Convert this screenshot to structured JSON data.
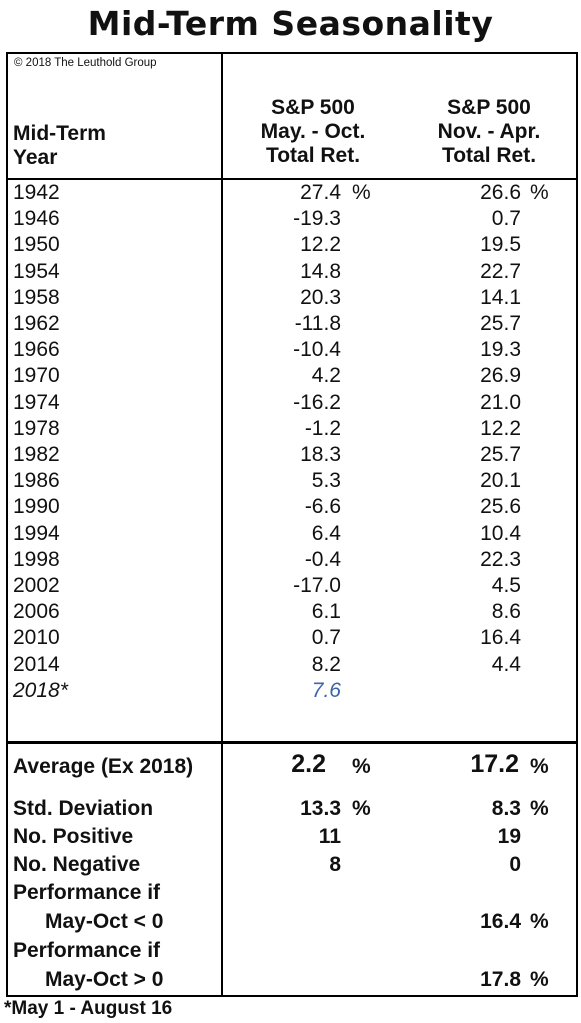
{
  "title": "Mid-Term Seasonality",
  "copyright": "© 2018 The Leuthold Group",
  "headers": {
    "year": [
      "Mid-Term",
      "Year"
    ],
    "col1": [
      "S&P 500",
      "May. - Oct.",
      "Total Ret."
    ],
    "col2": [
      "S&P 500",
      "Nov. - Apr.",
      "Total Ret."
    ]
  },
  "rows": [
    {
      "year": "1942",
      "may_oct": "27.4",
      "nov_apr": "26.6"
    },
    {
      "year": "1946",
      "may_oct": "-19.3",
      "nov_apr": "0.7"
    },
    {
      "year": "1950",
      "may_oct": "12.2",
      "nov_apr": "19.5"
    },
    {
      "year": "1954",
      "may_oct": "14.8",
      "nov_apr": "22.7"
    },
    {
      "year": "1958",
      "may_oct": "20.3",
      "nov_apr": "14.1"
    },
    {
      "year": "1962",
      "may_oct": "-11.8",
      "nov_apr": "25.7"
    },
    {
      "year": "1966",
      "may_oct": "-10.4",
      "nov_apr": "19.3"
    },
    {
      "year": "1970",
      "may_oct": "4.2",
      "nov_apr": "26.9"
    },
    {
      "year": "1974",
      "may_oct": "-16.2",
      "nov_apr": "21.0"
    },
    {
      "year": "1978",
      "may_oct": "-1.2",
      "nov_apr": "12.2"
    },
    {
      "year": "1982",
      "may_oct": "18.3",
      "nov_apr": "25.7"
    },
    {
      "year": "1986",
      "may_oct": "5.3",
      "nov_apr": "20.1"
    },
    {
      "year": "1990",
      "may_oct": "-6.6",
      "nov_apr": "25.6"
    },
    {
      "year": "1994",
      "may_oct": "6.4",
      "nov_apr": "10.4"
    },
    {
      "year": "1998",
      "may_oct": "-0.4",
      "nov_apr": "22.3"
    },
    {
      "year": "2002",
      "may_oct": "-17.0",
      "nov_apr": "4.5"
    },
    {
      "year": "2006",
      "may_oct": "6.1",
      "nov_apr": "8.6"
    },
    {
      "year": "2010",
      "may_oct": "0.7",
      "nov_apr": "16.4"
    },
    {
      "year": "2014",
      "may_oct": "8.2",
      "nov_apr": "4.4"
    }
  ],
  "partial_row": {
    "year": "2018*",
    "may_oct": "7.6"
  },
  "percent_sign": "%",
  "summary": {
    "average_label": "Average (Ex 2018)",
    "average_may_oct": "2.2",
    "average_nov_apr": "17.2",
    "stddev_label": "Std. Deviation",
    "stddev_may_oct": "13.3",
    "stddev_nov_apr": "8.3",
    "positive_label": "No. Positive",
    "positive_may_oct": "11",
    "positive_nov_apr": "19",
    "negative_label": "No. Negative",
    "negative_may_oct": "8",
    "negative_nov_apr": "0",
    "perf_neg_label_1": "Performance if",
    "perf_neg_label_2": "May-Oct < 0",
    "perf_neg_nov_apr": "16.4",
    "perf_pos_label_1": "Performance if",
    "perf_pos_label_2": "May-Oct > 0",
    "perf_pos_nov_apr": "17.8"
  },
  "footnote": "*May 1 - August 16"
}
